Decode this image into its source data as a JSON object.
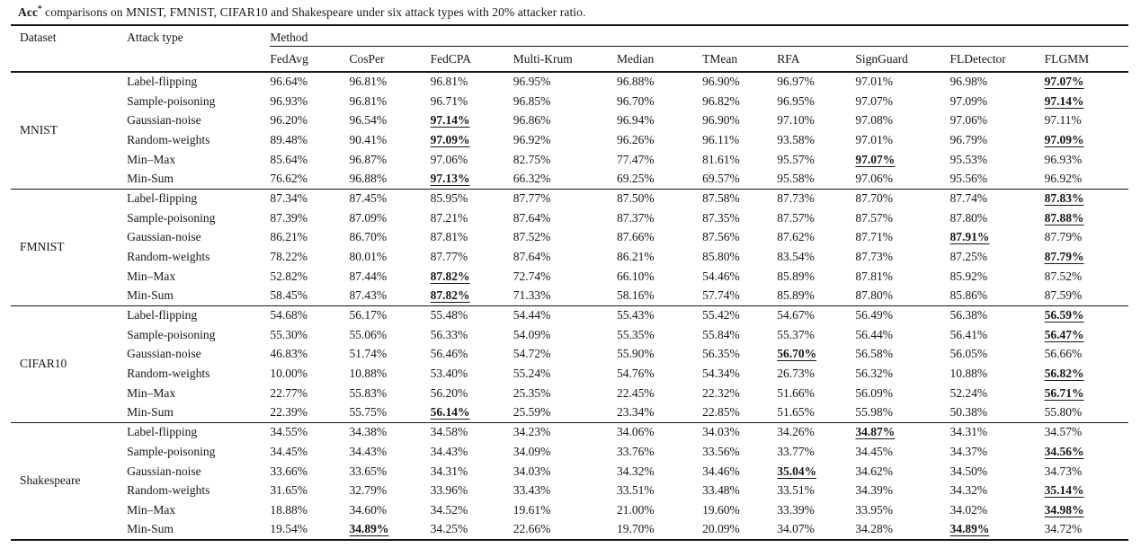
{
  "caption": {
    "acc": "Acc",
    "sup": "*",
    "rest": " comparisons on MNIST, FMNIST, CIFAR10 and Shakespeare under six attack types with 20% attacker ratio."
  },
  "table": {
    "col1_header": "Dataset",
    "col2_header": "Attack type",
    "method_header": "Method",
    "methods": [
      "FedAvg",
      "CosPer",
      "FedCPA",
      "Multi-Krum",
      "Median",
      "TMean",
      "RFA",
      "SignGuard",
      "FLDetector",
      "FLGMM"
    ],
    "groups": [
      {
        "dataset": "MNIST",
        "rows": [
          {
            "attack": "Label-flipping",
            "values": [
              "96.64%",
              "96.81%",
              "96.81%",
              "96.95%",
              "96.88%",
              "96.90%",
              "96.97%",
              "97.01%",
              "96.98%",
              "97.07%"
            ],
            "best": [
              9
            ]
          },
          {
            "attack": "Sample-poisoning",
            "values": [
              "96.93%",
              "96.81%",
              "96.71%",
              "96.85%",
              "96.70%",
              "96.82%",
              "96.95%",
              "97.07%",
              "97.09%",
              "97.14%"
            ],
            "best": [
              9
            ]
          },
          {
            "attack": "Gaussian-noise",
            "values": [
              "96.20%",
              "96.54%",
              "97.14%",
              "96.86%",
              "96.94%",
              "96.90%",
              "97.10%",
              "97.08%",
              "97.06%",
              "97.11%"
            ],
            "best": [
              2
            ]
          },
          {
            "attack": "Random-weights",
            "values": [
              "89.48%",
              "90.41%",
              "97.09%",
              "96.92%",
              "96.26%",
              "96.11%",
              "93.58%",
              "97.01%",
              "96.79%",
              "97.09%"
            ],
            "best": [
              2,
              9
            ]
          },
          {
            "attack": "Min–Max",
            "values": [
              "85.64%",
              "96.87%",
              "97.06%",
              "82.75%",
              "77.47%",
              "81.61%",
              "95.57%",
              "97.07%",
              "95.53%",
              "96.93%"
            ],
            "best": [
              7
            ]
          },
          {
            "attack": "Min-Sum",
            "values": [
              "76.62%",
              "96.88%",
              "97.13%",
              "66.32%",
              "69.25%",
              "69.57%",
              "95.58%",
              "97.06%",
              "95.56%",
              "96.92%"
            ],
            "best": [
              2
            ]
          }
        ]
      },
      {
        "dataset": "FMNIST",
        "rows": [
          {
            "attack": "Label-flipping",
            "values": [
              "87.34%",
              "87.45%",
              "85.95%",
              "87.77%",
              "87.50%",
              "87.58%",
              "87.73%",
              "87.70%",
              "87.74%",
              "87.83%"
            ],
            "best": [
              9
            ]
          },
          {
            "attack": "Sample-poisoning",
            "values": [
              "87.39%",
              "87.09%",
              "87.21%",
              "87.64%",
              "87.37%",
              "87.35%",
              "87.57%",
              "87.57%",
              "87.80%",
              "87.88%"
            ],
            "best": [
              9
            ]
          },
          {
            "attack": "Gaussian-noise",
            "values": [
              "86.21%",
              "86.70%",
              "87.81%",
              "87.52%",
              "87.66%",
              "87.56%",
              "87.62%",
              "87.71%",
              "87.91%",
              "87.79%"
            ],
            "best": [
              8
            ]
          },
          {
            "attack": "Random-weights",
            "values": [
              "78.22%",
              "80.01%",
              "87.77%",
              "87.64%",
              "86.21%",
              "85.80%",
              "83.54%",
              "87.73%",
              "87.25%",
              "87.79%"
            ],
            "best": [
              9
            ]
          },
          {
            "attack": "Min–Max",
            "values": [
              "52.82%",
              "87.44%",
              "87.82%",
              "72.74%",
              "66.10%",
              "54.46%",
              "85.89%",
              "87.81%",
              "85.92%",
              "87.52%"
            ],
            "best": [
              2
            ]
          },
          {
            "attack": "Min-Sum",
            "values": [
              "58.45%",
              "87.43%",
              "87.82%",
              "71.33%",
              "58.16%",
              "57.74%",
              "85.89%",
              "87.80%",
              "85.86%",
              "87.59%"
            ],
            "best": [
              2
            ]
          }
        ]
      },
      {
        "dataset": "CIFAR10",
        "rows": [
          {
            "attack": "Label-flipping",
            "values": [
              "54.68%",
              "56.17%",
              "55.48%",
              "54.44%",
              "55.43%",
              "55.42%",
              "54.67%",
              "56.49%",
              "56.38%",
              "56.59%"
            ],
            "best": [
              9
            ]
          },
          {
            "attack": "Sample-poisoning",
            "values": [
              "55.30%",
              "55.06%",
              "56.33%",
              "54.09%",
              "55.35%",
              "55.84%",
              "55.37%",
              "56.44%",
              "56.41%",
              "56.47%"
            ],
            "best": [
              9
            ]
          },
          {
            "attack": "Gaussian-noise",
            "values": [
              "46.83%",
              "51.74%",
              "56.46%",
              "54.72%",
              "55.90%",
              "56.35%",
              "56.70%",
              "56.58%",
              "56.05%",
              "56.66%"
            ],
            "best": [
              6
            ]
          },
          {
            "attack": "Random-weights",
            "values": [
              "10.00%",
              "10.88%",
              "53.40%",
              "55.24%",
              "54.76%",
              "54.34%",
              "26.73%",
              "56.32%",
              "10.88%",
              "56.82%"
            ],
            "best": [
              9
            ]
          },
          {
            "attack": "Min–Max",
            "values": [
              "22.77%",
              "55.83%",
              "56.20%",
              "25.35%",
              "22.45%",
              "22.32%",
              "51.66%",
              "56.09%",
              "52.24%",
              "56.71%"
            ],
            "best": [
              9
            ]
          },
          {
            "attack": "Min-Sum",
            "values": [
              "22.39%",
              "55.75%",
              "56.14%",
              "25.59%",
              "23.34%",
              "22.85%",
              "51.65%",
              "55.98%",
              "50.38%",
              "55.80%"
            ],
            "best": [
              2
            ]
          }
        ]
      },
      {
        "dataset": "Shakespeare",
        "rows": [
          {
            "attack": "Label-flipping",
            "values": [
              "34.55%",
              "34.38%",
              "34.58%",
              "34.23%",
              "34.06%",
              "34.03%",
              "34.26%",
              "34.87%",
              "34.31%",
              "34.57%"
            ],
            "best": [
              7
            ]
          },
          {
            "attack": "Sample-poisoning",
            "values": [
              "34.45%",
              "34.43%",
              "34.43%",
              "34.09%",
              "33.76%",
              "33.56%",
              "33.77%",
              "34.45%",
              "34.37%",
              "34.56%"
            ],
            "best": [
              9
            ]
          },
          {
            "attack": "Gaussian-noise",
            "values": [
              "33.66%",
              "33.65%",
              "34.31%",
              "34.03%",
              "34.32%",
              "34.46%",
              "35.04%",
              "34.62%",
              "34.50%",
              "34.73%"
            ],
            "best": [
              6
            ]
          },
          {
            "attack": "Random-weights",
            "values": [
              "31.65%",
              "32.79%",
              "33.96%",
              "33.43%",
              "33.51%",
              "33.48%",
              "33.51%",
              "34.39%",
              "34.32%",
              "35.14%"
            ],
            "best": [
              9
            ]
          },
          {
            "attack": "Min–Max",
            "values": [
              "18.88%",
              "34.60%",
              "34.52%",
              "19.61%",
              "21.00%",
              "19.60%",
              "33.39%",
              "33.95%",
              "34.02%",
              "34.98%"
            ],
            "best": [
              9
            ]
          },
          {
            "attack": "Min-Sum",
            "values": [
              "19.54%",
              "34.89%",
              "34.25%",
              "22.66%",
              "19.70%",
              "20.09%",
              "34.07%",
              "34.28%",
              "34.89%",
              "34.72%"
            ],
            "best": [
              1,
              8
            ]
          }
        ]
      }
    ]
  }
}
